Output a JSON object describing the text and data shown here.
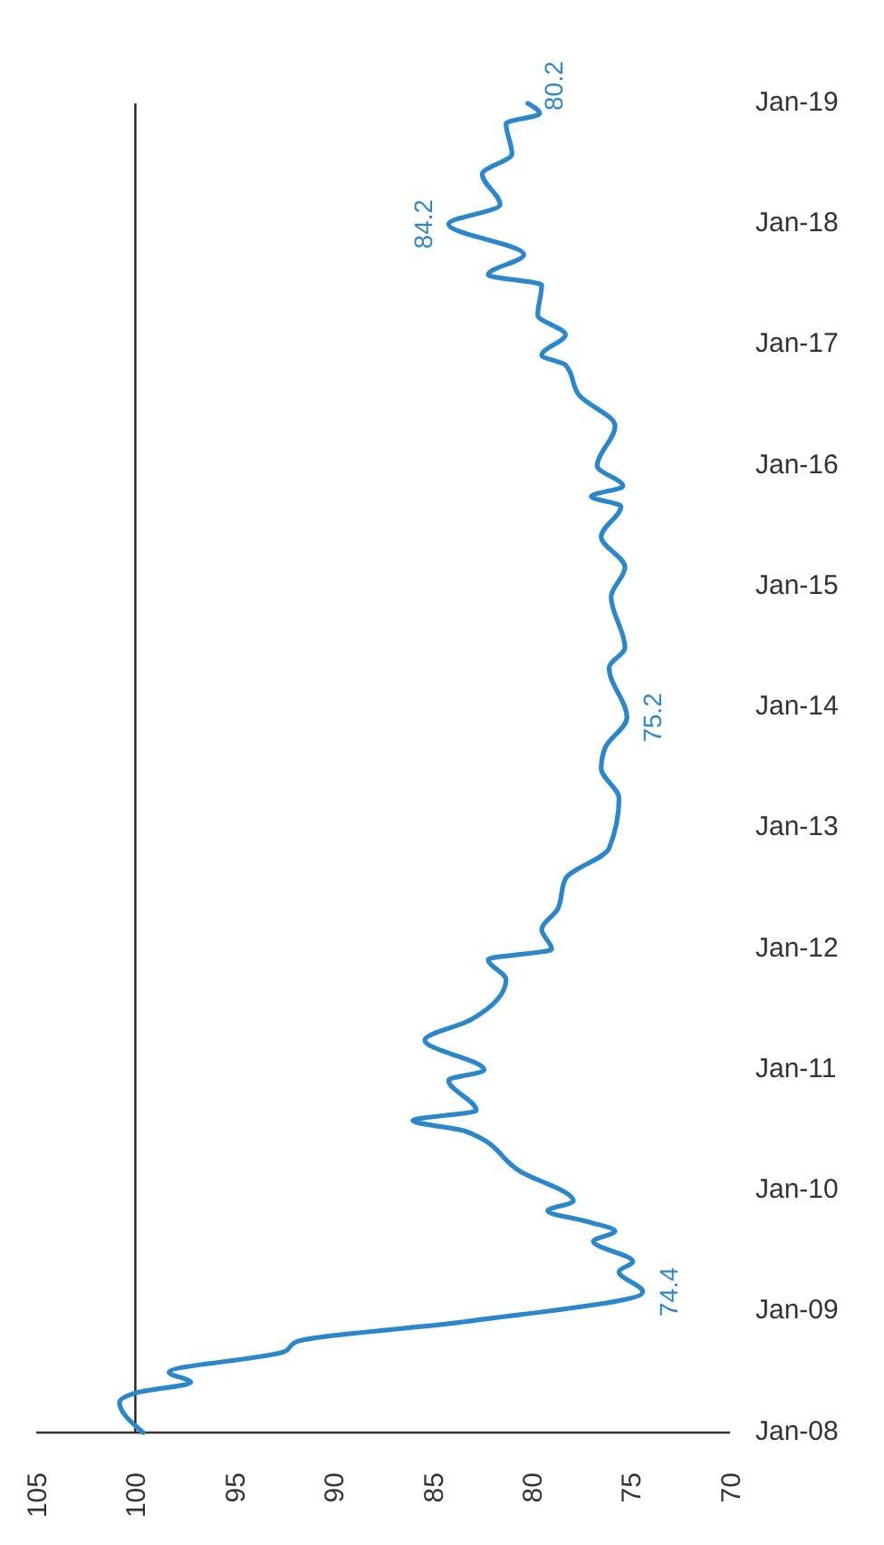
{
  "chart_data": {
    "type": "line",
    "orientation": "horizontal",
    "x": [
      "2008-01",
      "2008-04",
      "2008-05",
      "2008-06",
      "2008-07",
      "2008-09",
      "2008-10",
      "2008-12",
      "2009-03",
      "2009-05",
      "2009-06",
      "2009-08",
      "2009-09",
      "2009-10",
      "2009-11",
      "2009-12",
      "2010-03",
      "2010-07",
      "2010-08",
      "2010-09",
      "2010-12",
      "2011-01",
      "2011-04",
      "2011-06",
      "2011-10",
      "2011-12",
      "2012-01",
      "2012-03",
      "2012-05",
      "2012-08",
      "2012-11",
      "2013-04",
      "2013-07",
      "2013-09",
      "2013-12",
      "2014-05",
      "2014-07",
      "2014-12",
      "2015-03",
      "2015-06",
      "2015-09",
      "2015-10",
      "2015-11",
      "2016-01",
      "2016-05",
      "2016-08",
      "2016-11",
      "2016-12",
      "2017-02",
      "2017-04",
      "2017-07",
      "2017-08",
      "2017-10",
      "2018-01",
      "2018-03",
      "2018-06",
      "2018-08",
      "2018-11",
      "2018-12",
      "2019-01"
    ],
    "series": [
      {
        "color": "#2b87cc",
        "values": [
          99.6,
          100.8,
          99.9,
          97.2,
          98.3,
          92.5,
          91.9,
          83.4,
          74.4,
          75.6,
          74.9,
          76.9,
          75.8,
          77.3,
          79.2,
          77.9,
          80.6,
          83.4,
          86.0,
          82.8,
          84.2,
          82.4,
          85.4,
          83.1,
          81.3,
          82.2,
          79.0,
          79.5,
          78.7,
          78.3,
          76.1,
          75.6,
          76.5,
          76.3,
          75.2,
          76.1,
          75.3,
          76.0,
          75.3,
          76.5,
          75.5,
          77.0,
          75.4,
          76.7,
          75.8,
          77.6,
          78.3,
          79.5,
          78.3,
          79.7,
          79.5,
          82.2,
          80.4,
          84.2,
          81.6,
          82.5,
          81.0,
          81.3,
          79.6,
          80.2
        ],
        "value_labels": [
          null,
          null,
          null,
          null,
          null,
          null,
          null,
          null,
          "74.4",
          null,
          null,
          null,
          null,
          null,
          null,
          null,
          null,
          null,
          null,
          null,
          null,
          null,
          null,
          null,
          null,
          null,
          null,
          null,
          null,
          null,
          null,
          null,
          null,
          null,
          "75.2",
          null,
          null,
          null,
          null,
          null,
          null,
          null,
          null,
          null,
          null,
          null,
          null,
          null,
          null,
          null,
          null,
          null,
          null,
          "84.2",
          null,
          null,
          null,
          null,
          null,
          "80.2"
        ]
      }
    ],
    "ylim": [
      "2008-01",
      "2019-01"
    ],
    "yticks": [
      {
        "value": "2008-01",
        "label": "Jan-08"
      },
      {
        "value": "2009-01",
        "label": "Jan-09"
      },
      {
        "value": "2010-01",
        "label": "Jan-10"
      },
      {
        "value": "2011-01",
        "label": "Jan-11"
      },
      {
        "value": "2012-01",
        "label": "Jan-12"
      },
      {
        "value": "2013-01",
        "label": "Jan-13"
      },
      {
        "value": "2014-01",
        "label": "Jan-14"
      },
      {
        "value": "2015-01",
        "label": "Jan-15"
      },
      {
        "value": "2016-01",
        "label": "Jan-16"
      },
      {
        "value": "2017-01",
        "label": "Jan-17"
      },
      {
        "value": "2018-01",
        "label": "Jan-18"
      },
      {
        "value": "2019-01",
        "label": "Jan-19"
      }
    ],
    "xlim": [
      105,
      70
    ],
    "xticks": [
      105,
      100,
      95,
      90,
      85,
      80,
      75,
      70
    ],
    "ref_lines": [
      {
        "axis": "x",
        "value": 100,
        "color": "#222222"
      }
    ],
    "grid": false
  }
}
